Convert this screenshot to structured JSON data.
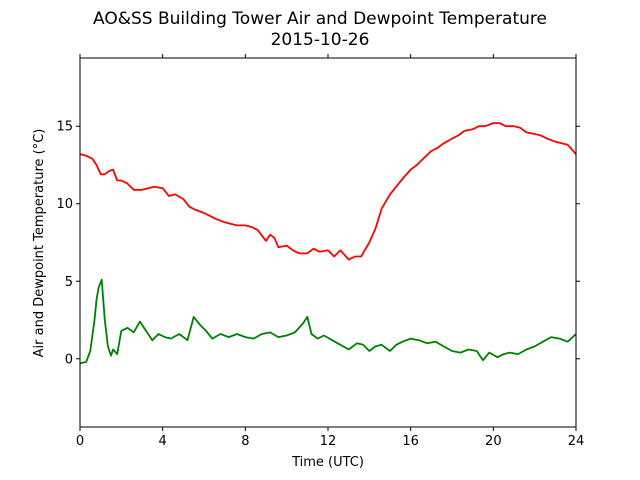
{
  "chart_data": {
    "type": "line",
    "title": "AO&SS Building Tower Air and Dewpoint Temperature",
    "subtitle": "2015-10-26",
    "xlabel": "Time (UTC)",
    "ylabel": "Air and Dewpoint Temperature (°C)",
    "xlim": [
      0,
      24
    ],
    "ylim": [
      -4.4,
      19.4
    ],
    "xticks": [
      0,
      4,
      8,
      12,
      16,
      20,
      24
    ],
    "yticks": [
      0,
      5,
      10,
      15
    ],
    "grid": false,
    "legend": "none",
    "series": [
      {
        "color": "#ff0000",
        "x": [
          0,
          0.3,
          0.6,
          0.8,
          1,
          1.2,
          1.4,
          1.6,
          1.8,
          2,
          2.3,
          2.6,
          3,
          3.3,
          3.6,
          4,
          4.3,
          4.6,
          5,
          5.3,
          5.6,
          6,
          6.3,
          6.6,
          7,
          7.3,
          7.6,
          8,
          8.3,
          8.6,
          9,
          9.2,
          9.4,
          9.6,
          10,
          10.3,
          10.6,
          11,
          11.3,
          11.6,
          12,
          12.3,
          12.6,
          13,
          13.3,
          13.6,
          14,
          14.3,
          14.6,
          15,
          15.3,
          15.6,
          16,
          16.3,
          16.6,
          17,
          17.3,
          17.6,
          18,
          18.3,
          18.6,
          19,
          19.3,
          19.6,
          20,
          20.3,
          20.6,
          21,
          21.3,
          21.6,
          22,
          22.3,
          22.6,
          23,
          23.3,
          23.6,
          24
        ],
        "y": [
          13.2,
          13.1,
          12.9,
          12.5,
          11.9,
          11.9,
          12.1,
          12.2,
          11.5,
          11.5,
          11.3,
          10.9,
          10.9,
          11.0,
          11.1,
          11.0,
          10.5,
          10.6,
          10.3,
          9.8,
          9.6,
          9.4,
          9.2,
          9.0,
          8.8,
          8.7,
          8.6,
          8.6,
          8.5,
          8.3,
          7.6,
          8.0,
          7.8,
          7.2,
          7.3,
          7.0,
          6.8,
          6.8,
          7.1,
          6.9,
          7.0,
          6.6,
          7.0,
          6.4,
          6.6,
          6.6,
          7.5,
          8.4,
          9.7,
          10.6,
          11.1,
          11.6,
          12.2,
          12.5,
          12.9,
          13.4,
          13.6,
          13.9,
          14.2,
          14.4,
          14.7,
          14.8,
          15.0,
          15.0,
          15.2,
          15.2,
          15.0,
          15.0,
          14.9,
          14.6,
          14.5,
          14.4,
          14.2,
          14.0,
          13.9,
          13.8,
          13.2
        ]
      },
      {
        "color": "#008000",
        "x": [
          0,
          0.3,
          0.5,
          0.7,
          0.8,
          0.9,
          1.05,
          1.2,
          1.35,
          1.5,
          1.6,
          1.8,
          2,
          2.3,
          2.6,
          2.9,
          3.2,
          3.5,
          3.8,
          4.1,
          4.4,
          4.8,
          5.2,
          5.5,
          5.8,
          6.1,
          6.4,
          6.8,
          7.2,
          7.6,
          8,
          8.4,
          8.8,
          9.2,
          9.6,
          10,
          10.4,
          10.8,
          11,
          11.2,
          11.5,
          11.8,
          12.2,
          12.6,
          13,
          13.4,
          13.7,
          14,
          14.3,
          14.6,
          15,
          15.3,
          15.6,
          16,
          16.4,
          16.8,
          17.2,
          17.6,
          18,
          18.4,
          18.8,
          19.2,
          19.5,
          19.8,
          20.2,
          20.5,
          20.8,
          21.2,
          21.6,
          22,
          22.4,
          22.8,
          23.2,
          23.6,
          24
        ],
        "y": [
          -0.3,
          -0.2,
          0.5,
          2.5,
          3.8,
          4.6,
          5.1,
          2.5,
          0.8,
          0.2,
          0.6,
          0.3,
          1.8,
          2.0,
          1.7,
          2.4,
          1.8,
          1.2,
          1.6,
          1.4,
          1.3,
          1.6,
          1.2,
          2.7,
          2.2,
          1.8,
          1.3,
          1.6,
          1.4,
          1.6,
          1.4,
          1.3,
          1.6,
          1.7,
          1.4,
          1.5,
          1.7,
          2.3,
          2.7,
          1.6,
          1.3,
          1.5,
          1.2,
          0.9,
          0.6,
          1.0,
          0.9,
          0.5,
          0.8,
          0.9,
          0.5,
          0.9,
          1.1,
          1.3,
          1.2,
          1.0,
          1.1,
          0.8,
          0.5,
          0.4,
          0.6,
          0.5,
          -0.1,
          0.4,
          0.1,
          0.3,
          0.4,
          0.3,
          0.6,
          0.8,
          1.1,
          1.4,
          1.3,
          1.1,
          1.6
        ]
      }
    ]
  }
}
